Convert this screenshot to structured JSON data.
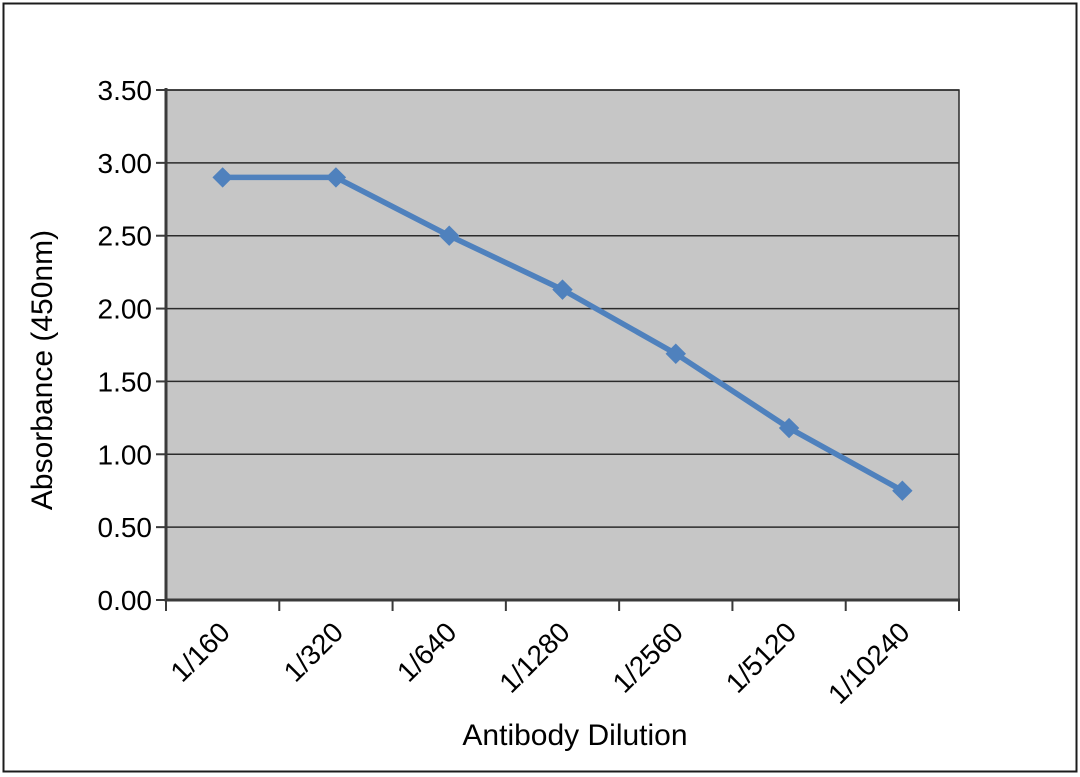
{
  "chart_data": {
    "type": "line",
    "title": "",
    "categories": [
      "1/160",
      "1/320",
      "1/640",
      "1/1280",
      "1/2560",
      "1/5120",
      "1/10240"
    ],
    "series": [
      {
        "name": "Absorbance",
        "values": [
          2.9,
          2.9,
          2.5,
          2.13,
          1.69,
          1.18,
          0.75
        ]
      }
    ],
    "xlabel": "Antibody Dilution",
    "ylabel": "Absorbance (450nm)",
    "ylim": [
      0,
      3.5
    ],
    "ytick_step": 0.5,
    "ytick_labels": [
      "0.00",
      "0.50",
      "1.00",
      "1.50",
      "2.00",
      "2.50",
      "3.00",
      "3.50"
    ],
    "grid": "horizontal",
    "legend": "none",
    "marker": "diamond",
    "colors": {
      "series": "#4F81BD",
      "plot_bg": "#C6C6C6",
      "grid": "#2B2B2B",
      "axis": "#3A3A3A",
      "text": "#000000",
      "page_bg": "#FFFFFF",
      "page_border": "#1C1C1C"
    }
  }
}
